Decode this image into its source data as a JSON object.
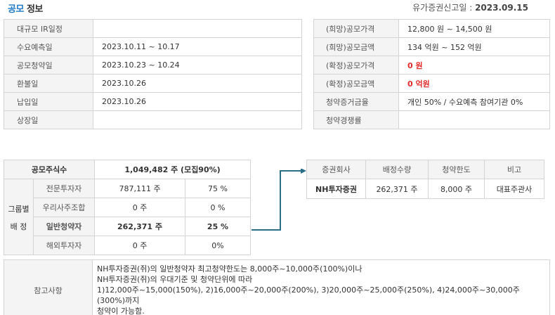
{
  "title": {
    "accent": "공모",
    "rest": "정보"
  },
  "filing": {
    "label": "유가증권신고일 : ",
    "date": "2023.09.15"
  },
  "schedule": [
    {
      "label": "대규모 IR일정",
      "value": ""
    },
    {
      "label": "수요예측일",
      "value": "2023.10.11 ~ 10.17"
    },
    {
      "label": "공모청약일",
      "value": "2023.10.23 ~ 10.24"
    },
    {
      "label": "환불일",
      "value": "2023.10.26"
    },
    {
      "label": "납입일",
      "value": "2023.10.26"
    },
    {
      "label": "상장일",
      "value": ""
    }
  ],
  "pricing": [
    {
      "label": "(희망)공모가격",
      "value": "12,800 원 ~ 14,500 원"
    },
    {
      "label": "(희망)공모금액",
      "value": "134 억원  ~ 152 억원"
    },
    {
      "label": "(확정)공모가격",
      "value": "0 원"
    },
    {
      "label": "(확정)공모금액",
      "value": "0 억원"
    },
    {
      "label": "청약증거금율",
      "value": "개인 50% / 수요예측 참여기관 0%"
    },
    {
      "label": "청약경쟁률",
      "value": ""
    }
  ],
  "allocation": {
    "total_label": "공모주식수",
    "total_value": "1,049,482  주 (모집90%)",
    "group_label_1": "그룹별",
    "group_label_2": "배  정",
    "rows": [
      {
        "name": "전문투자자",
        "shares": "787,111 주",
        "pct": "75 %"
      },
      {
        "name": "우리사주조합",
        "shares": "0 주",
        "pct": "0 %"
      },
      {
        "name": "일반청약자",
        "shares": "262,371  주",
        "pct": "25 %"
      },
      {
        "name": "해외투자자",
        "shares": "0 주",
        "pct": "0%"
      }
    ]
  },
  "brokers": {
    "headers": [
      "증권회사",
      "배정수량",
      "청약한도",
      "비고"
    ],
    "rows": [
      {
        "name": "NH투자증권",
        "qty": "262,371 주",
        "limit": "8,000 주",
        "note": "대표주관사"
      }
    ]
  },
  "notes": {
    "label": "참고사항",
    "lines": [
      "NH투자증권(쥐)의 일반청약자 최고청약한도는 8,000주~10,000주(100%)이나",
      "NH투자증권(쥐)의 우대기준 및 청약단위에 따라",
      "1)12,000주~15,000(150%), 2)16,000주~20,000주(200%), 3)20,000주~25,000주(250%), 4)24,000주~30,000주(300%)까지",
      "청약이 가능함."
    ]
  },
  "colors": {
    "accent": "#1e79c7",
    "highlight": "#e32b2b",
    "arrow": "#2a6f87"
  }
}
